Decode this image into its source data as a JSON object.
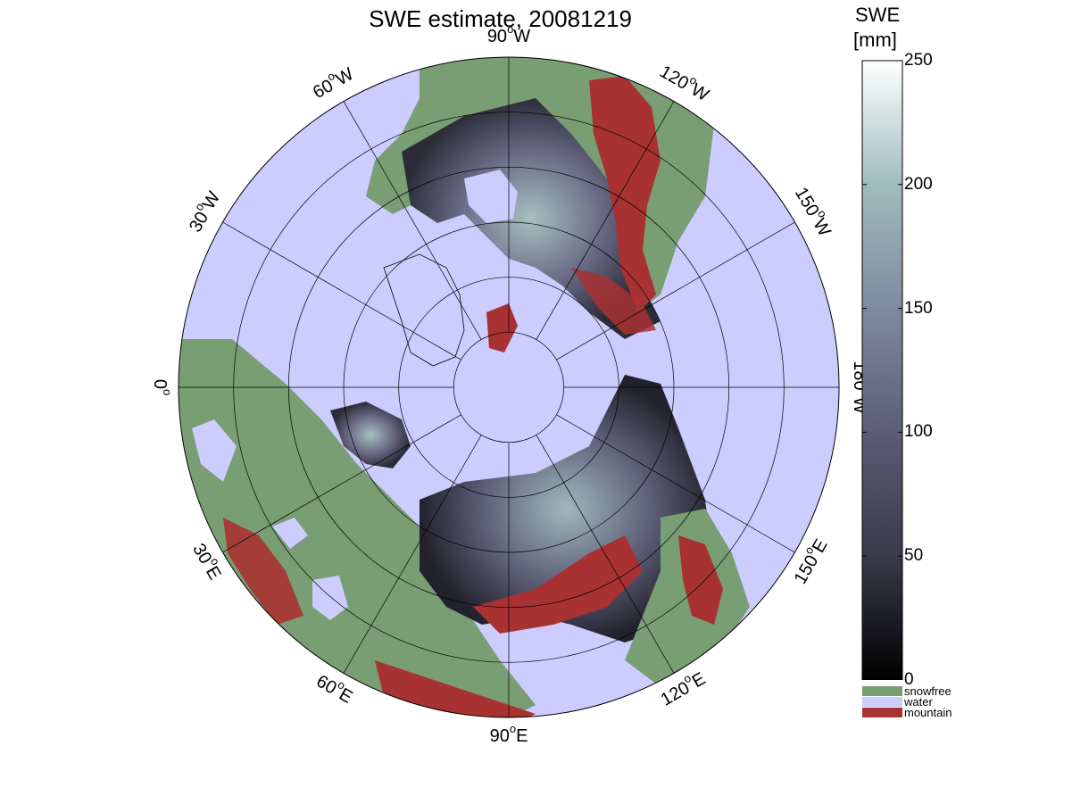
{
  "title": "SWE estimate, 20081219",
  "colorbar": {
    "title_line1": "SWE",
    "title_line2": "[mm]",
    "ticks": [
      "0",
      "50",
      "100",
      "150",
      "200",
      "250"
    ],
    "tick_values": [
      0,
      50,
      100,
      150,
      200,
      250
    ],
    "range": [
      0,
      250
    ],
    "colormap": [
      "#000000",
      "#3a3a4a",
      "#5c5c78",
      "#7e8aa0",
      "#9fbcbc",
      "#ffffff"
    ]
  },
  "legend": [
    {
      "label": "snowfree",
      "color": "#7a9e74"
    },
    {
      "label": "water",
      "color": "#ccccff"
    },
    {
      "label": "mountain",
      "color": "#a83232"
    }
  ],
  "map": {
    "projection": "north polar stereographic",
    "ocean_color": "#ccccff",
    "land_snowfree_color": "#7a9e74",
    "mountain_color": "#a83232",
    "snow_color_dark": "#3c3c4c",
    "snow_color_light": "#a6c0c0",
    "meridians": [
      {
        "lon": 90,
        "hemi": "W",
        "label": "90",
        "suffix": "W"
      },
      {
        "lon": 120,
        "hemi": "W",
        "label": "120",
        "suffix": "W"
      },
      {
        "lon": 150,
        "hemi": "W",
        "label": "150",
        "suffix": "W"
      },
      {
        "lon": 180,
        "hemi": "",
        "label": "180",
        "suffix": "W"
      },
      {
        "lon": 150,
        "hemi": "E",
        "label": "150",
        "suffix": "E"
      },
      {
        "lon": 120,
        "hemi": "E",
        "label": "120",
        "suffix": "E"
      },
      {
        "lon": 90,
        "hemi": "E",
        "label": "90",
        "suffix": "E"
      },
      {
        "lon": 60,
        "hemi": "E",
        "label": "60",
        "suffix": "E"
      },
      {
        "lon": 30,
        "hemi": "E",
        "label": "30",
        "suffix": "E"
      },
      {
        "lon": 0,
        "hemi": "",
        "label": "0",
        "suffix": ""
      },
      {
        "lon": 30,
        "hemi": "W",
        "label": "30",
        "suffix": "W"
      },
      {
        "lon": 60,
        "hemi": "W",
        "label": "60",
        "suffix": "W"
      }
    ],
    "parallels_count": 6
  }
}
